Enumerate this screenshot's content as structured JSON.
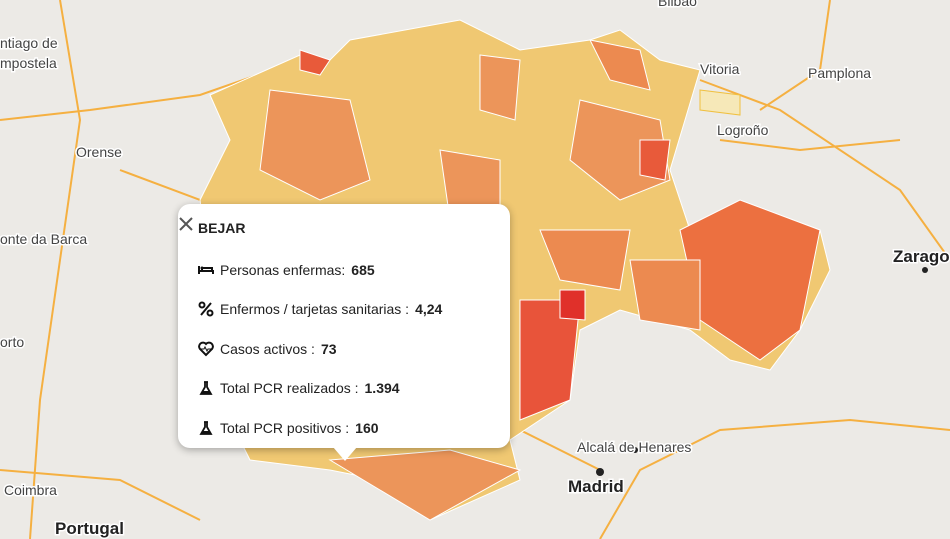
{
  "map": {
    "labels": [
      {
        "text": "ntiago de"
      },
      {
        "text": "mpostela"
      },
      {
        "text": "Orense"
      },
      {
        "text": "onte da Barca"
      },
      {
        "text": "orto"
      },
      {
        "text": "Coimbra"
      },
      {
        "text": "Portugal"
      },
      {
        "text": "Bilbao"
      },
      {
        "text": "Vitoria"
      },
      {
        "text": "Pamplona"
      },
      {
        "text": "Logroño"
      },
      {
        "text": "Zarago"
      },
      {
        "text": "Alcalá de Henares"
      },
      {
        "text": "Madrid"
      }
    ]
  },
  "popup": {
    "title": "BEJAR",
    "rows": [
      {
        "label": "Personas enfermas:",
        "value": "685"
      },
      {
        "label": "Enfermos / tarjetas sanitarias :",
        "value": "4,24"
      },
      {
        "label": "Casos activos :",
        "value": "73"
      },
      {
        "label": "Total PCR realizados :",
        "value": "1.394"
      },
      {
        "label": "Total PCR positivos :",
        "value": "160"
      }
    ]
  }
}
